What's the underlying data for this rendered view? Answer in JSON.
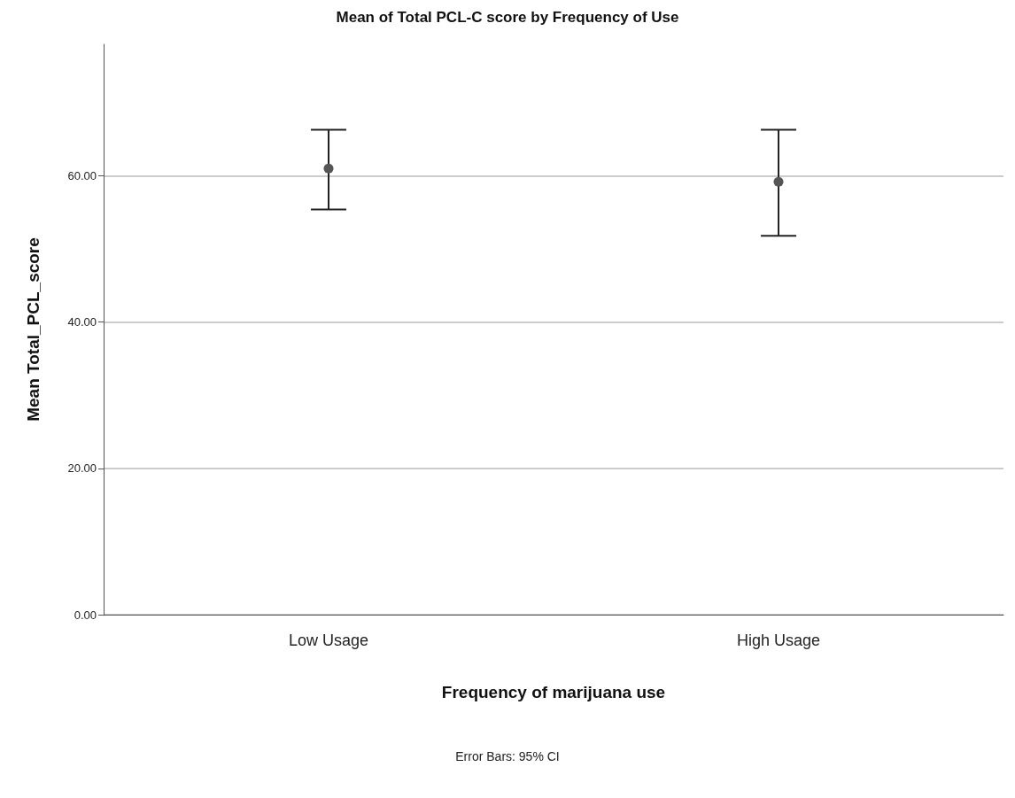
{
  "chart_data": {
    "type": "scatter",
    "title": "Mean of Total PCL-C score by Frequency of Use",
    "xlabel": "Frequency of marijuana use",
    "ylabel": "Mean Total_PCL_score",
    "categories": [
      "Low Usage",
      "High Usage"
    ],
    "series": [
      {
        "color": "#555555",
        "values": [
          61.0,
          59.2
        ],
        "errors": [
          [
            55.4,
            66.3
          ],
          [
            51.8,
            66.3
          ]
        ]
      }
    ],
    "ylim": [
      0,
      78
    ],
    "yticks": [
      {
        "value": 0,
        "label": "0.00"
      },
      {
        "value": 20,
        "label": "20.00"
      },
      {
        "value": 40,
        "label": "40.00"
      },
      {
        "value": 60,
        "label": "60.00"
      }
    ],
    "grid": "y",
    "marker": "circle",
    "annotations": [
      "Error Bars: 95% CI"
    ]
  }
}
